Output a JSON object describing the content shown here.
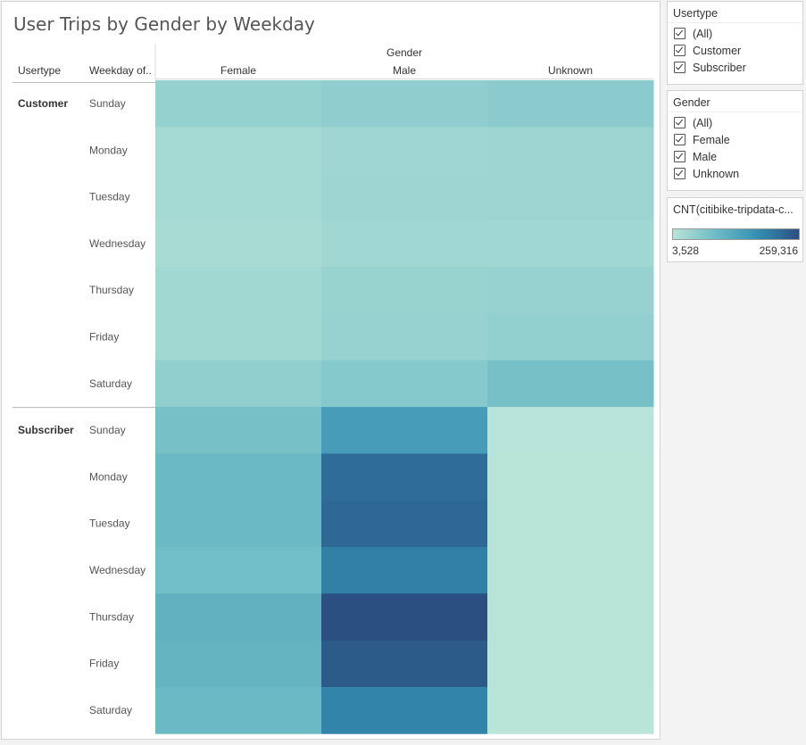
{
  "chart_data": {
    "type": "heatmap",
    "title": "User Trips by Gender by Weekday",
    "col_group_label": "Gender",
    "row_headers": [
      "Usertype",
      "Weekday of.."
    ],
    "columns": [
      "Female",
      "Male",
      "Unknown"
    ],
    "row_groups": [
      {
        "label": "Customer",
        "rows": [
          {
            "weekday": "Sunday",
            "values": [
              45000,
              52000,
              56000
            ]
          },
          {
            "weekday": "Monday",
            "values": [
              26000,
              34000,
              38000
            ]
          },
          {
            "weekday": "Tuesday",
            "values": [
              26000,
              36000,
              38000
            ]
          },
          {
            "weekday": "Wednesday",
            "values": [
              23000,
              32000,
              32000
            ]
          },
          {
            "weekday": "Thursday",
            "values": [
              30000,
              40000,
              42000
            ]
          },
          {
            "weekday": "Friday",
            "values": [
              30000,
              42000,
              48000
            ]
          },
          {
            "weekday": "Saturday",
            "values": [
              50000,
              62000,
              80000
            ]
          }
        ]
      },
      {
        "label": "Subscriber",
        "rows": [
          {
            "weekday": "Sunday",
            "values": [
              80000,
              148000,
              5000
            ]
          },
          {
            "weekday": "Monday",
            "values": [
              95000,
              220000,
              4500
            ]
          },
          {
            "weekday": "Tuesday",
            "values": [
              95000,
              225000,
              4500
            ]
          },
          {
            "weekday": "Wednesday",
            "values": [
              85000,
              195000,
              4500
            ]
          },
          {
            "weekday": "Thursday",
            "values": [
              110000,
              259316,
              4500
            ]
          },
          {
            "weekday": "Friday",
            "values": [
              105000,
              245000,
              4500
            ]
          },
          {
            "weekday": "Saturday",
            "values": [
              95000,
              190000,
              3528
            ]
          }
        ]
      }
    ],
    "color_scale": {
      "min": 3528,
      "max": 259316,
      "min_label": "3,528",
      "max_label": "259,316",
      "colors": [
        "#b9e4d8",
        "#6fbcc6",
        "#3590b3",
        "#2a4f80"
      ]
    }
  },
  "filters": [
    {
      "title": "Usertype",
      "options": [
        "(All)",
        "Customer",
        "Subscriber"
      ]
    },
    {
      "title": "Gender",
      "options": [
        "(All)",
        "Female",
        "Male",
        "Unknown"
      ]
    }
  ],
  "legend": {
    "title": "CNT(citibike-tripdata-c..."
  }
}
